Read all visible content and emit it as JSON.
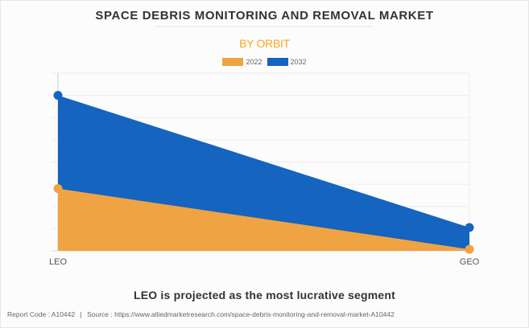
{
  "header": {
    "title": "SPACE DEBRIS MONITORING AND REMOVAL MARKET",
    "subtitle": "BY ORBIT"
  },
  "legend": [
    {
      "label": "2022",
      "color": "#f0a343"
    },
    {
      "label": "2032",
      "color": "#1464c0"
    }
  ],
  "chart_data": {
    "type": "area",
    "title": "SPACE DEBRIS MONITORING AND REMOVAL MARKET",
    "subtitle": "BY ORBIT",
    "categories": [
      "LEO",
      "GEO"
    ],
    "series": [
      {
        "name": "2032",
        "color": "#1464c0",
        "values": [
          7.0,
          1.05
        ]
      },
      {
        "name": "2022",
        "color": "#f0a343",
        "values": [
          2.8,
          0.07
        ]
      }
    ],
    "ylim": [
      0,
      8
    ],
    "y_units": "relative (no y-axis labels shown)",
    "grid": true,
    "legend_position": "top-center",
    "xlabel": "",
    "ylabel": ""
  },
  "headline": "LEO is projected as the most lucrative segment",
  "footer": {
    "report_code": "Report Code : A10442",
    "separator": "|",
    "source": "Source : https://www.alliedmarketresearch.com/space-debris-monitoring-and-removal-market-A10442"
  }
}
